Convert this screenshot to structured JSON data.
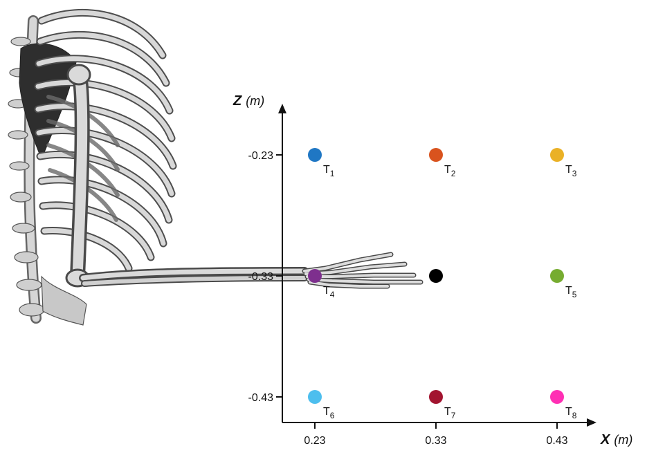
{
  "figure": {
    "axes": {
      "x": {
        "letter": "X",
        "unit": "(m)",
        "ticks": [
          "0.23",
          "0.33",
          "0.43"
        ]
      },
      "z": {
        "letter": "Z",
        "unit": "(m)",
        "ticks": [
          "-0.23",
          "-0.33",
          "-0.43"
        ]
      }
    },
    "illustration": "skeleton-arm",
    "colors": {
      "axis": "#111111",
      "bone_fill": "#d4d4d4",
      "bone_stroke": "#5a5a5a"
    }
  },
  "chart_data": {
    "type": "scatter",
    "xlabel": "X (m)",
    "ylabel": "Z (m)",
    "xlim": [
      0.205,
      0.505
    ],
    "ylim": [
      -0.45,
      -0.185
    ],
    "x_ticks": [
      0.23,
      0.33,
      0.43
    ],
    "z_ticks": [
      -0.23,
      -0.33,
      -0.43
    ],
    "hand_position": {
      "x": 0.33,
      "z": -0.33,
      "color": "#000000"
    },
    "targets": [
      {
        "label": "T",
        "sub": "1",
        "x": 0.23,
        "z": -0.23,
        "color": "#1f77c4"
      },
      {
        "label": "T",
        "sub": "2",
        "x": 0.33,
        "z": -0.23,
        "color": "#d9531e"
      },
      {
        "label": "T",
        "sub": "3",
        "x": 0.43,
        "z": -0.23,
        "color": "#eab126"
      },
      {
        "label": "T",
        "sub": "4",
        "x": 0.23,
        "z": -0.33,
        "color": "#7e2f8e"
      },
      {
        "label": "T",
        "sub": "5",
        "x": 0.43,
        "z": -0.33,
        "color": "#76ac30"
      },
      {
        "label": "T",
        "sub": "6",
        "x": 0.23,
        "z": -0.43,
        "color": "#4dbeee"
      },
      {
        "label": "T",
        "sub": "7",
        "x": 0.33,
        "z": -0.43,
        "color": "#a2142f"
      },
      {
        "label": "T",
        "sub": "8",
        "x": 0.43,
        "z": -0.43,
        "color": "#ff2fb4"
      }
    ]
  }
}
